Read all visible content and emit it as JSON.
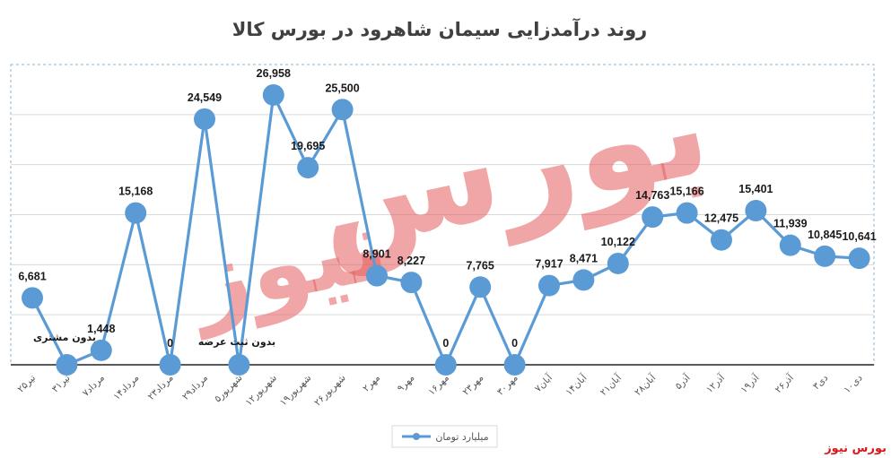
{
  "chart_data": {
    "type": "line",
    "title": "روند درآمدزایی سیمان شاهرود در بورس کالا",
    "categories": [
      "۲۵تیر",
      "۳۱تیر",
      "۷مرداد",
      "۱۴مرداد",
      "۲۳مرداد",
      "۲۹مرداد",
      "۵شهریور",
      "۱۲شهریور",
      "۱۹شهریور",
      "۲۶شهریور",
      "۲مهر",
      "۹مهر",
      "۱۶مهر",
      "۲۳مهر",
      "۳۰مهر",
      "۷آبان",
      "۱۴آبان",
      "۲۱آبان",
      "۲۸آبان",
      "۵آذر",
      "۱۲آذر",
      "۱۹آذر",
      "۲۶آذر",
      "۳دی",
      "۱۰دی"
    ],
    "series": [
      {
        "name": "میلیارد تومان",
        "color": "#5b9bd5",
        "values": [
          6681,
          0,
          1448,
          15168,
          0,
          24549,
          0,
          26958,
          19695,
          25500,
          8901,
          8227,
          0,
          7765,
          0,
          7917,
          8471,
          10122,
          14763,
          15166,
          12475,
          15401,
          11939,
          10845,
          10641
        ],
        "labels": [
          "6,681",
          "",
          "1,448",
          "15,168",
          "0",
          "24,549",
          "",
          "26,958",
          "19,695",
          "25,500",
          "8,901",
          "8,227",
          "0",
          "7,765",
          "0",
          "7,917",
          "8,471",
          "10,122",
          "14,763",
          "15,166",
          "12,475",
          "15,401",
          "11,939",
          "10,845",
          "10,641"
        ]
      }
    ],
    "annotations": [
      "بدون مشتری",
      "بدون ثبت عرضه"
    ],
    "ylim": [
      0,
      30000
    ],
    "grid": true,
    "legend": "bottom"
  },
  "watermark": {
    "line1": "بورس",
    "line2": "نیوز"
  },
  "brand": "بورس نیوز"
}
